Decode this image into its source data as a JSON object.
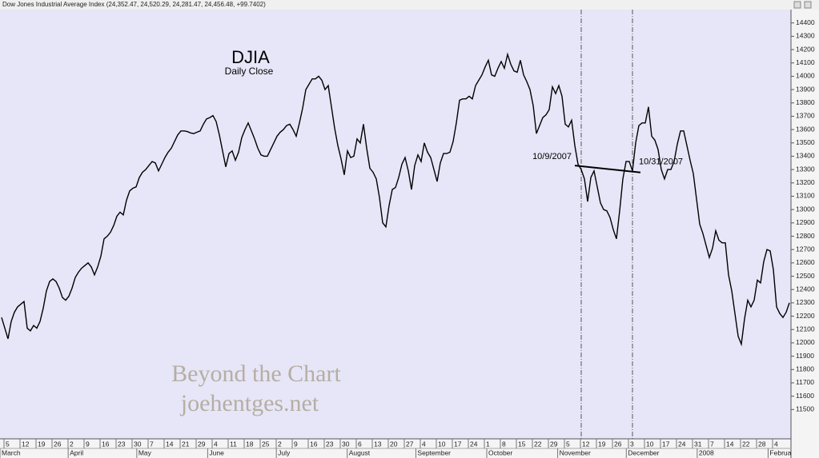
{
  "window_title": "Dow Jones Industrial Average Index (24,352.47, 24,520.29, 24,281.47, 24,456.48, +99.7402)",
  "chart_data": {
    "type": "line",
    "title": "DJIA",
    "subtitle": "Daily Close",
    "color": "#000000",
    "background": "#e6e6f8",
    "watermark": [
      "Beyond the Chart",
      "joehentges.net"
    ],
    "months": [
      "March",
      "April",
      "May",
      "June",
      "July",
      "August",
      "September",
      "October",
      "November",
      "December",
      "2008",
      "February"
    ],
    "categories": [
      null,
      null,
      "5",
      null,
      null,
      null,
      null,
      "12",
      null,
      null,
      null,
      null,
      "19",
      null,
      null,
      null,
      null,
      "26",
      null,
      null,
      null,
      null,
      "2",
      null,
      null,
      null,
      null,
      "9",
      null,
      null,
      null,
      null,
      "16",
      null,
      null,
      null,
      null,
      "23",
      null,
      null,
      null,
      null,
      "30",
      null,
      null,
      null,
      null,
      "7",
      null,
      null,
      null,
      null,
      "14",
      null,
      null,
      null,
      null,
      "21",
      null,
      null,
      null,
      null,
      "29",
      null,
      null,
      null,
      null,
      "4",
      null,
      null,
      null,
      null,
      "11",
      null,
      null,
      null,
      null,
      "18",
      null,
      null,
      null,
      null,
      "25",
      null,
      null,
      null,
      null,
      "2",
      null,
      null,
      null,
      null,
      "9",
      null,
      null,
      null,
      null,
      "16",
      null,
      null,
      null,
      null,
      "23",
      null,
      null,
      null,
      null,
      "30",
      null,
      null,
      null,
      null,
      "6",
      null,
      null,
      null,
      null,
      "13",
      null,
      null,
      null,
      null,
      "20",
      null,
      null,
      null,
      null,
      "27",
      null,
      null,
      null,
      null,
      "4",
      null,
      null,
      null,
      null,
      "10",
      null,
      null,
      null,
      null,
      "17",
      null,
      null,
      null,
      null,
      "24",
      null,
      null,
      null,
      null,
      "1",
      null,
      null,
      null,
      null,
      "8",
      null,
      null,
      null,
      null,
      "15",
      null,
      null,
      null,
      null,
      "22",
      null,
      null,
      null,
      null,
      "29",
      null,
      null,
      null,
      null,
      "5",
      null,
      null,
      null,
      null,
      "12",
      null,
      null,
      null,
      null,
      "19",
      null,
      null,
      null,
      null,
      "26",
      null,
      null,
      null,
      null,
      "3",
      null,
      null,
      null,
      null,
      "10",
      null,
      null,
      null,
      null,
      "17",
      null,
      null,
      null,
      null,
      "24",
      null,
      null,
      null,
      null,
      "31",
      null,
      null,
      null,
      null,
      "7",
      null,
      null,
      null,
      null,
      "14",
      null,
      null,
      null,
      null,
      "22",
      null,
      null,
      null,
      null,
      "28",
      null,
      null,
      null,
      null,
      "4",
      null,
      null,
      null,
      null
    ],
    "values": [
      12190,
      12110,
      12030,
      12160,
      12230,
      12270,
      12290,
      12310,
      12110,
      12090,
      12130,
      12110,
      12160,
      12260,
      12390,
      12460,
      12480,
      12460,
      12410,
      12340,
      12320,
      12350,
      12410,
      12490,
      12530,
      12560,
      12580,
      12600,
      12570,
      12510,
      12570,
      12650,
      12780,
      12800,
      12830,
      12880,
      12950,
      12980,
      12960,
      13070,
      13140,
      13160,
      13170,
      13240,
      13280,
      13300,
      13330,
      13360,
      13350,
      13290,
      13340,
      13390,
      13430,
      13460,
      13510,
      13560,
      13590,
      13590,
      13585,
      13575,
      13570,
      13580,
      13590,
      13640,
      13680,
      13690,
      13705,
      13660,
      13560,
      13440,
      13320,
      13420,
      13440,
      13370,
      13430,
      13540,
      13600,
      13650,
      13590,
      13530,
      13460,
      13410,
      13400,
      13400,
      13450,
      13500,
      13550,
      13580,
      13600,
      13630,
      13640,
      13600,
      13550,
      13650,
      13760,
      13900,
      13940,
      13980,
      13980,
      14000,
      13970,
      13900,
      13930,
      13770,
      13610,
      13480,
      13380,
      13260,
      13440,
      13390,
      13400,
      13530,
      13500,
      13640,
      13460,
      13310,
      13280,
      13230,
      13090,
      12900,
      12870,
      13030,
      13150,
      13165,
      13240,
      13340,
      13390,
      13290,
      13150,
      13330,
      13410,
      13360,
      13500,
      13430,
      13390,
      13300,
      13210,
      13350,
      13420,
      13420,
      13430,
      13510,
      13650,
      13820,
      13830,
      13830,
      13850,
      13830,
      13930,
      13970,
      14010,
      14070,
      14120,
      14010,
      14000,
      14060,
      14110,
      14060,
      14164,
      14090,
      14040,
      14030,
      14120,
      14010,
      13960,
      13900,
      13780,
      13570,
      13630,
      13690,
      13710,
      13750,
      13920,
      13870,
      13930,
      13850,
      13640,
      13620,
      13670,
      13480,
      13340,
      13300,
      13230,
      13060,
      13240,
      13290,
      13170,
      13050,
      13000,
      12990,
      12940,
      12850,
      12780,
      12990,
      13230,
      13360,
      13360,
      13290,
      13500,
      13630,
      13650,
      13650,
      13770,
      13550,
      13520,
      13450,
      13300,
      13230,
      13300,
      13300,
      13360,
      13490,
      13590,
      13590,
      13480,
      13370,
      13270,
      13080,
      12890,
      12820,
      12730,
      12640,
      12710,
      12840,
      12770,
      12750,
      12750,
      12510,
      12390,
      12220,
      12050,
      11990,
      12180,
      12320,
      12270,
      12320,
      12470,
      12450,
      12610,
      12700,
      12690,
      12550,
      12270,
      12220,
      12190,
      12230,
      12300
    ],
    "annotations": [
      {
        "label": "10/9/2007"
      },
      {
        "label": "10/31/2007"
      }
    ],
    "ylim": [
      11280,
      14500
    ],
    "yticks": [
      11500,
      11600,
      11700,
      11800,
      11900,
      12000,
      12100,
      12200,
      12300,
      12400,
      12500,
      12600,
      12700,
      12800,
      12900,
      13000,
      13100,
      13200,
      13300,
      13400,
      13500,
      13600,
      13700,
      13800,
      13900,
      14000,
      14100,
      14200,
      14300,
      14400
    ]
  }
}
